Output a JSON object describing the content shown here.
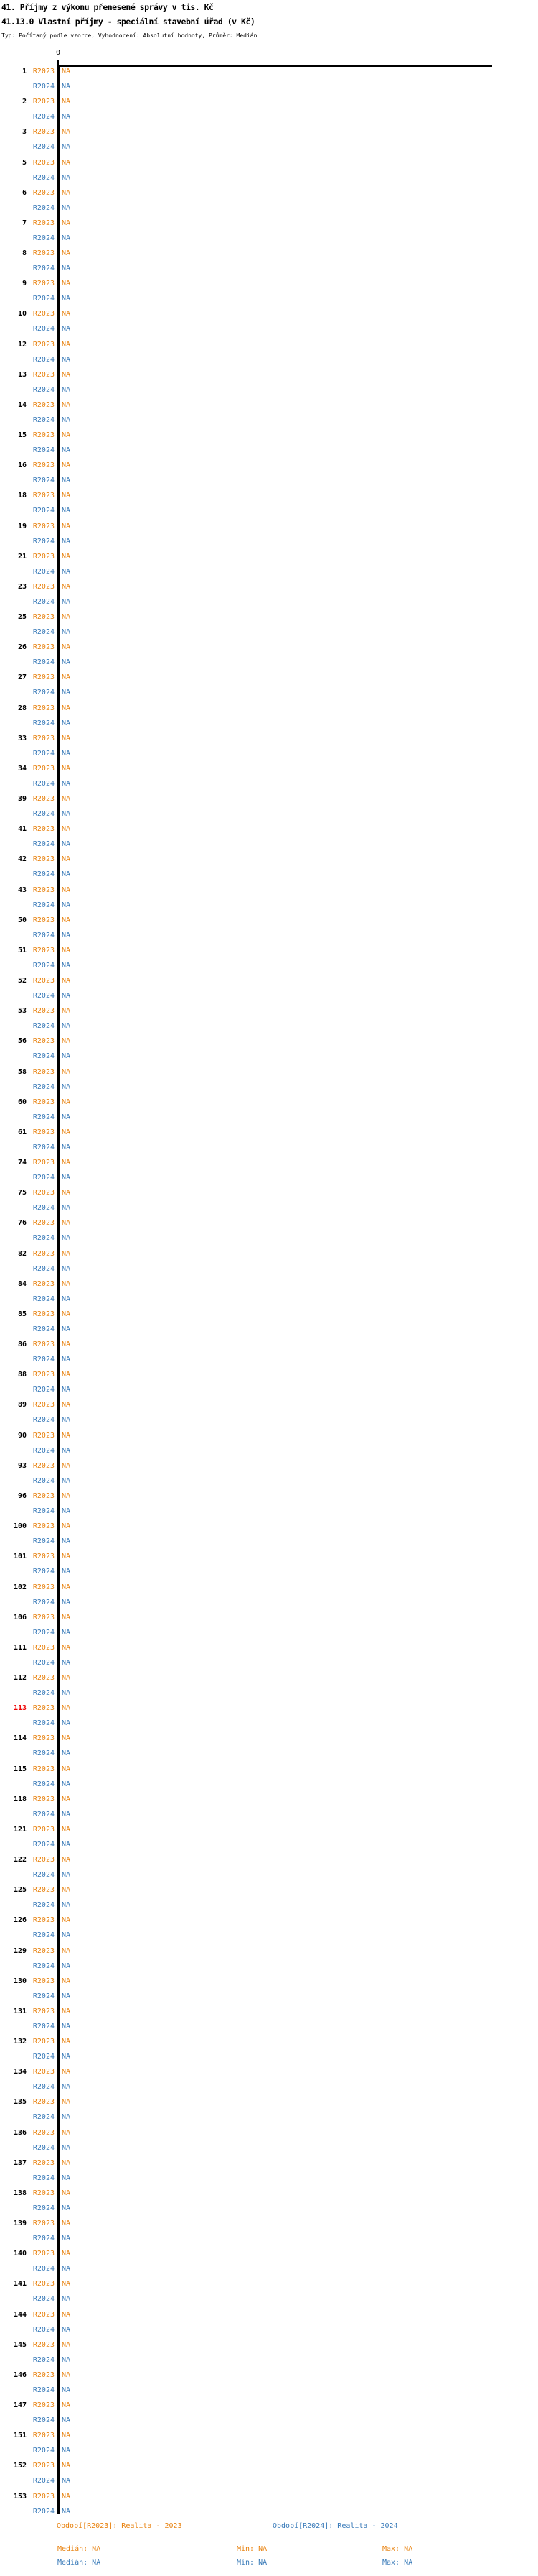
{
  "style": {
    "color_r2023": "#E8820F",
    "color_r2024": "#3779B8",
    "color_highlight": "#EE0000",
    "color_axis": "#000000"
  },
  "chart_data": {
    "type": "bar",
    "orientation": "horizontal",
    "title": "41. Příjmy z výkonu přenesené správy v tis. Kč",
    "subtitle": "41.13.0 Vlastní příjmy - speciální stavební úřad (v Kč)",
    "note": "Typ: Počítaný podle vzorce, Vyhodnocení: Absolutní hodnoty, Průměr: Medián",
    "x_axis": {
      "ticks": [
        "0"
      ],
      "gridlines": false
    },
    "na_text": "NA",
    "categories": [
      "1",
      "2",
      "3",
      "5",
      "6",
      "7",
      "8",
      "9",
      "10",
      "12",
      "13",
      "14",
      "15",
      "16",
      "18",
      "19",
      "21",
      "23",
      "25",
      "26",
      "27",
      "28",
      "33",
      "34",
      "39",
      "41",
      "42",
      "43",
      "50",
      "51",
      "52",
      "53",
      "56",
      "58",
      "60",
      "61",
      "74",
      "75",
      "76",
      "82",
      "84",
      "85",
      "86",
      "88",
      "89",
      "90",
      "93",
      "96",
      "100",
      "101",
      "102",
      "106",
      "111",
      "112",
      "113",
      "114",
      "115",
      "118",
      "121",
      "122",
      "125",
      "126",
      "129",
      "130",
      "131",
      "132",
      "134",
      "135",
      "136",
      "137",
      "138",
      "139",
      "140",
      "141",
      "144",
      "145",
      "146",
      "147",
      "151",
      "152",
      "153"
    ],
    "highlighted_categories": [
      "113"
    ],
    "series": [
      {
        "name": "R2023",
        "values": [
          "NA",
          "NA",
          "NA",
          "NA",
          "NA",
          "NA",
          "NA",
          "NA",
          "NA",
          "NA",
          "NA",
          "NA",
          "NA",
          "NA",
          "NA",
          "NA",
          "NA",
          "NA",
          "NA",
          "NA",
          "NA",
          "NA",
          "NA",
          "NA",
          "NA",
          "NA",
          "NA",
          "NA",
          "NA",
          "NA",
          "NA",
          "NA",
          "NA",
          "NA",
          "NA",
          "NA",
          "NA",
          "NA",
          "NA",
          "NA",
          "NA",
          "NA",
          "NA",
          "NA",
          "NA",
          "NA",
          "NA",
          "NA",
          "NA",
          "NA",
          "NA",
          "NA",
          "NA",
          "NA",
          "NA",
          "NA",
          "NA",
          "NA",
          "NA",
          "NA",
          "NA",
          "NA",
          "NA",
          "NA",
          "NA",
          "NA",
          "NA",
          "NA",
          "NA",
          "NA",
          "NA",
          "NA",
          "NA",
          "NA",
          "NA",
          "NA",
          "NA",
          "NA",
          "NA",
          "NA",
          "NA"
        ]
      },
      {
        "name": "R2024",
        "values": [
          "NA",
          "NA",
          "NA",
          "NA",
          "NA",
          "NA",
          "NA",
          "NA",
          "NA",
          "NA",
          "NA",
          "NA",
          "NA",
          "NA",
          "NA",
          "NA",
          "NA",
          "NA",
          "NA",
          "NA",
          "NA",
          "NA",
          "NA",
          "NA",
          "NA",
          "NA",
          "NA",
          "NA",
          "NA",
          "NA",
          "NA",
          "NA",
          "NA",
          "NA",
          "NA",
          "NA",
          "NA",
          "NA",
          "NA",
          "NA",
          "NA",
          "NA",
          "NA",
          "NA",
          "NA",
          "NA",
          "NA",
          "NA",
          "NA",
          "NA",
          "NA",
          "NA",
          "NA",
          "NA",
          "NA",
          "NA",
          "NA",
          "NA",
          "NA",
          "NA",
          "NA",
          "NA",
          "NA",
          "NA",
          "NA",
          "NA",
          "NA",
          "NA",
          "NA",
          "NA",
          "NA",
          "NA",
          "NA",
          "NA",
          "NA",
          "NA",
          "NA",
          "NA",
          "NA",
          "NA",
          "NA"
        ]
      }
    ]
  },
  "legend": {
    "r2023": {
      "period": "Období[R2023]: Realita - 2023",
      "median": "Medián: NA",
      "min": "Min: NA",
      "max": "Max: NA"
    },
    "r2024": {
      "period": "Období[R2024]: Realita - 2024",
      "median": "Medián: NA",
      "min": "Min: NA",
      "max": "Max: NA"
    }
  }
}
